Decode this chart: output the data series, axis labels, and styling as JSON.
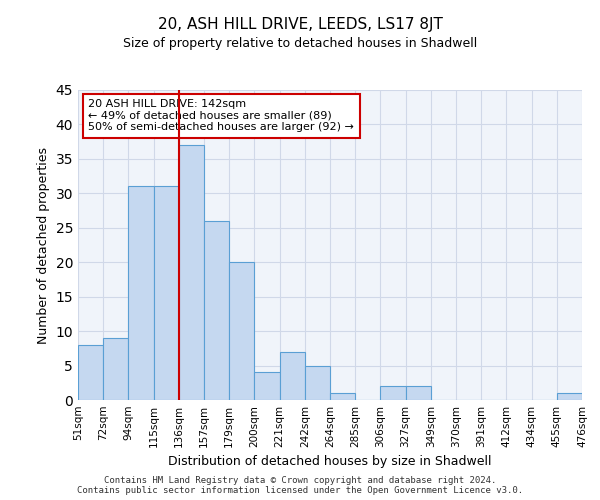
{
  "title": "20, ASH HILL DRIVE, LEEDS, LS17 8JT",
  "subtitle": "Size of property relative to detached houses in Shadwell",
  "xlabel": "Distribution of detached houses by size in Shadwell",
  "ylabel": "Number of detached properties",
  "bin_edges": [
    "51sqm",
    "72sqm",
    "94sqm",
    "115sqm",
    "136sqm",
    "157sqm",
    "179sqm",
    "200sqm",
    "221sqm",
    "242sqm",
    "264sqm",
    "285sqm",
    "306sqm",
    "327sqm",
    "349sqm",
    "370sqm",
    "391sqm",
    "412sqm",
    "434sqm",
    "455sqm",
    "476sqm"
  ],
  "bar_heights": [
    8,
    9,
    31,
    31,
    37,
    26,
    20,
    4,
    7,
    5,
    1,
    0,
    2,
    2,
    0,
    0,
    0,
    0,
    0,
    1
  ],
  "bar_color": "#c5d8f0",
  "bar_edge_color": "#5a9fd4",
  "grid_color": "#d0d8e8",
  "property_line_bin_index": 4,
  "property_line_color": "#cc0000",
  "annotation_text": "20 ASH HILL DRIVE: 142sqm\n← 49% of detached houses are smaller (89)\n50% of semi-detached houses are larger (92) →",
  "annotation_box_color": "#cc0000",
  "ylim": [
    0,
    45
  ],
  "yticks": [
    0,
    5,
    10,
    15,
    20,
    25,
    30,
    35,
    40,
    45
  ],
  "footer_line1": "Contains HM Land Registry data © Crown copyright and database right 2024.",
  "footer_line2": "Contains public sector information licensed under the Open Government Licence v3.0.",
  "background_color": "#f0f4fa"
}
